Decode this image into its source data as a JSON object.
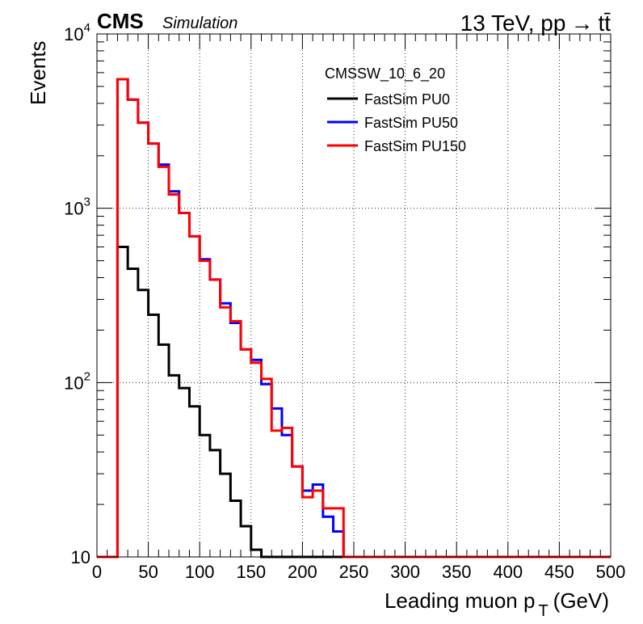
{
  "header": {
    "experiment": "CMS",
    "tag": "Simulation",
    "energy": "13 TeV, pp",
    "arrow": "→",
    "process": "tt̄"
  },
  "legend_header": "CMSSW_10_6_20",
  "chart_data": {
    "type": "line",
    "subtype": "step-histogram",
    "xlabel": "Leading muon p",
    "xlabel_sub": "T",
    "xlabel_unit": "(GeV)",
    "ylabel": "Events",
    "xlim": [
      0,
      500
    ],
    "ylim": [
      10,
      10000
    ],
    "yscale": "log",
    "grid": true,
    "legend_position": "top-right",
    "xticks": [
      0,
      50,
      100,
      150,
      200,
      250,
      300,
      350,
      400,
      450,
      500
    ],
    "xtick_labels": [
      "0",
      "50",
      "100",
      "150",
      "200",
      "250",
      "300",
      "350",
      "400",
      "450",
      "500"
    ],
    "ytick_labels": [
      {
        "value": 10,
        "base": "10",
        "exp": ""
      },
      {
        "value": 100,
        "base": "10",
        "exp": "2"
      },
      {
        "value": 1000,
        "base": "10",
        "exp": "3"
      },
      {
        "value": 10000,
        "base": "10",
        "exp": "4"
      }
    ],
    "bin_edges": [
      0,
      10,
      20,
      30,
      40,
      50,
      60,
      70,
      80,
      90,
      100,
      110,
      120,
      130,
      140,
      150,
      160,
      170,
      180,
      190,
      200,
      210,
      220,
      230,
      240,
      250,
      260,
      270,
      280,
      290,
      300,
      310,
      320,
      330,
      340,
      350,
      360,
      370,
      380,
      390,
      400,
      410,
      420,
      430,
      440,
      450,
      460,
      470,
      480,
      490,
      500
    ],
    "series": [
      {
        "name": "FastSim PU0",
        "color": "#000000",
        "values": [
          0,
          0,
          600,
          450,
          340,
          245,
          165,
          110,
          93,
          73,
          50,
          41,
          30,
          21,
          15,
          11,
          10,
          10,
          10,
          10,
          10,
          10,
          10,
          10,
          10,
          10,
          10,
          10,
          10,
          10,
          10,
          10,
          10,
          10,
          10,
          10,
          10,
          10,
          10,
          10,
          10,
          10,
          10,
          10,
          10,
          10,
          10,
          10,
          10,
          10
        ]
      },
      {
        "name": "FastSim PU50",
        "color": "#0000ff",
        "values": [
          0,
          0,
          5500,
          4200,
          3100,
          2350,
          1780,
          1250,
          940,
          690,
          510,
          390,
          285,
          220,
          155,
          135,
          98,
          71,
          50,
          33,
          24,
          26,
          17,
          14,
          0,
          0,
          0,
          0,
          0,
          0,
          0,
          0,
          0,
          0,
          0,
          0,
          0,
          0,
          0,
          0,
          0,
          0,
          0,
          0,
          0,
          0,
          0,
          0,
          0,
          0
        ]
      },
      {
        "name": "FastSim PU150",
        "color": "#ff0000",
        "values": [
          0,
          0,
          5500,
          4200,
          3100,
          2350,
          1730,
          1200,
          940,
          690,
          500,
          390,
          270,
          225,
          155,
          130,
          105,
          53,
          55,
          33,
          22,
          24,
          19,
          19,
          10,
          10,
          10,
          10,
          10,
          10,
          10,
          10,
          10,
          10,
          10,
          10,
          10,
          10,
          10,
          10,
          10,
          10,
          10,
          10,
          10,
          10,
          10,
          10,
          10,
          10
        ]
      }
    ]
  }
}
